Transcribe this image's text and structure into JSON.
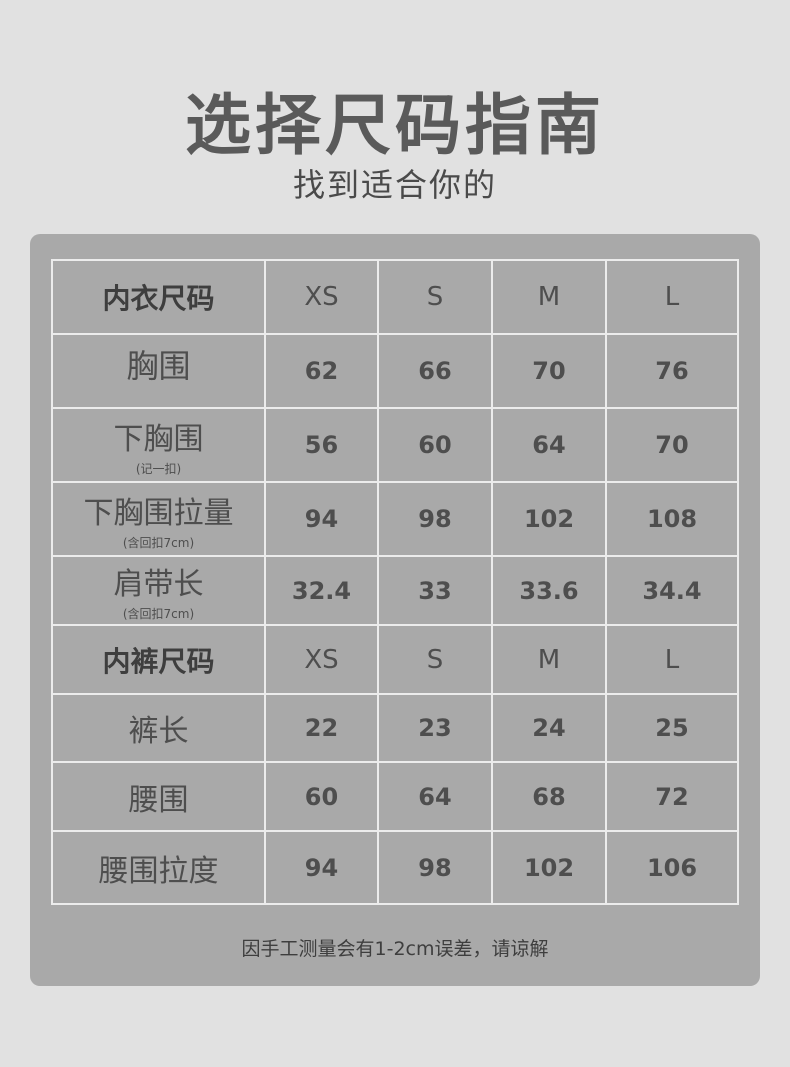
{
  "title": "选择尺码指南",
  "subtitle": "找到适合你的",
  "bra_table": {
    "header": {
      "label": "内衣尺码",
      "sizes": [
        "XS",
        "S",
        "M",
        "L"
      ]
    },
    "rows": [
      {
        "label": "胸围",
        "note": "",
        "values": [
          "62",
          "66",
          "70",
          "76"
        ]
      },
      {
        "label": "下胸围",
        "note": "(记一扣)",
        "values": [
          "56",
          "60",
          "64",
          "70"
        ]
      },
      {
        "label": "下胸围拉量",
        "note": "(含回扣7cm)",
        "values": [
          "94",
          "98",
          "102",
          "108"
        ]
      },
      {
        "label": "肩带长",
        "note": "(含回扣7cm)",
        "values": [
          "32.4",
          "33",
          "33.6",
          "34.4"
        ]
      }
    ]
  },
  "panty_table": {
    "header": {
      "label": "内裤尺码",
      "sizes": [
        "XS",
        "S",
        "M",
        "L"
      ]
    },
    "rows": [
      {
        "label": "裤长",
        "values": [
          "22",
          "23",
          "24",
          "25"
        ]
      },
      {
        "label": "腰围",
        "values": [
          "60",
          "64",
          "68",
          "72"
        ]
      },
      {
        "label": "腰围拉度",
        "values": [
          "94",
          "98",
          "102",
          "106"
        ]
      }
    ]
  },
  "footnote": "因手工测量会有1-2cm误差，请谅解",
  "colors": {
    "background": "#e1e1e1",
    "panel": "#a9a9a9",
    "grid": "#ececec",
    "text": "#4e4e4e"
  }
}
